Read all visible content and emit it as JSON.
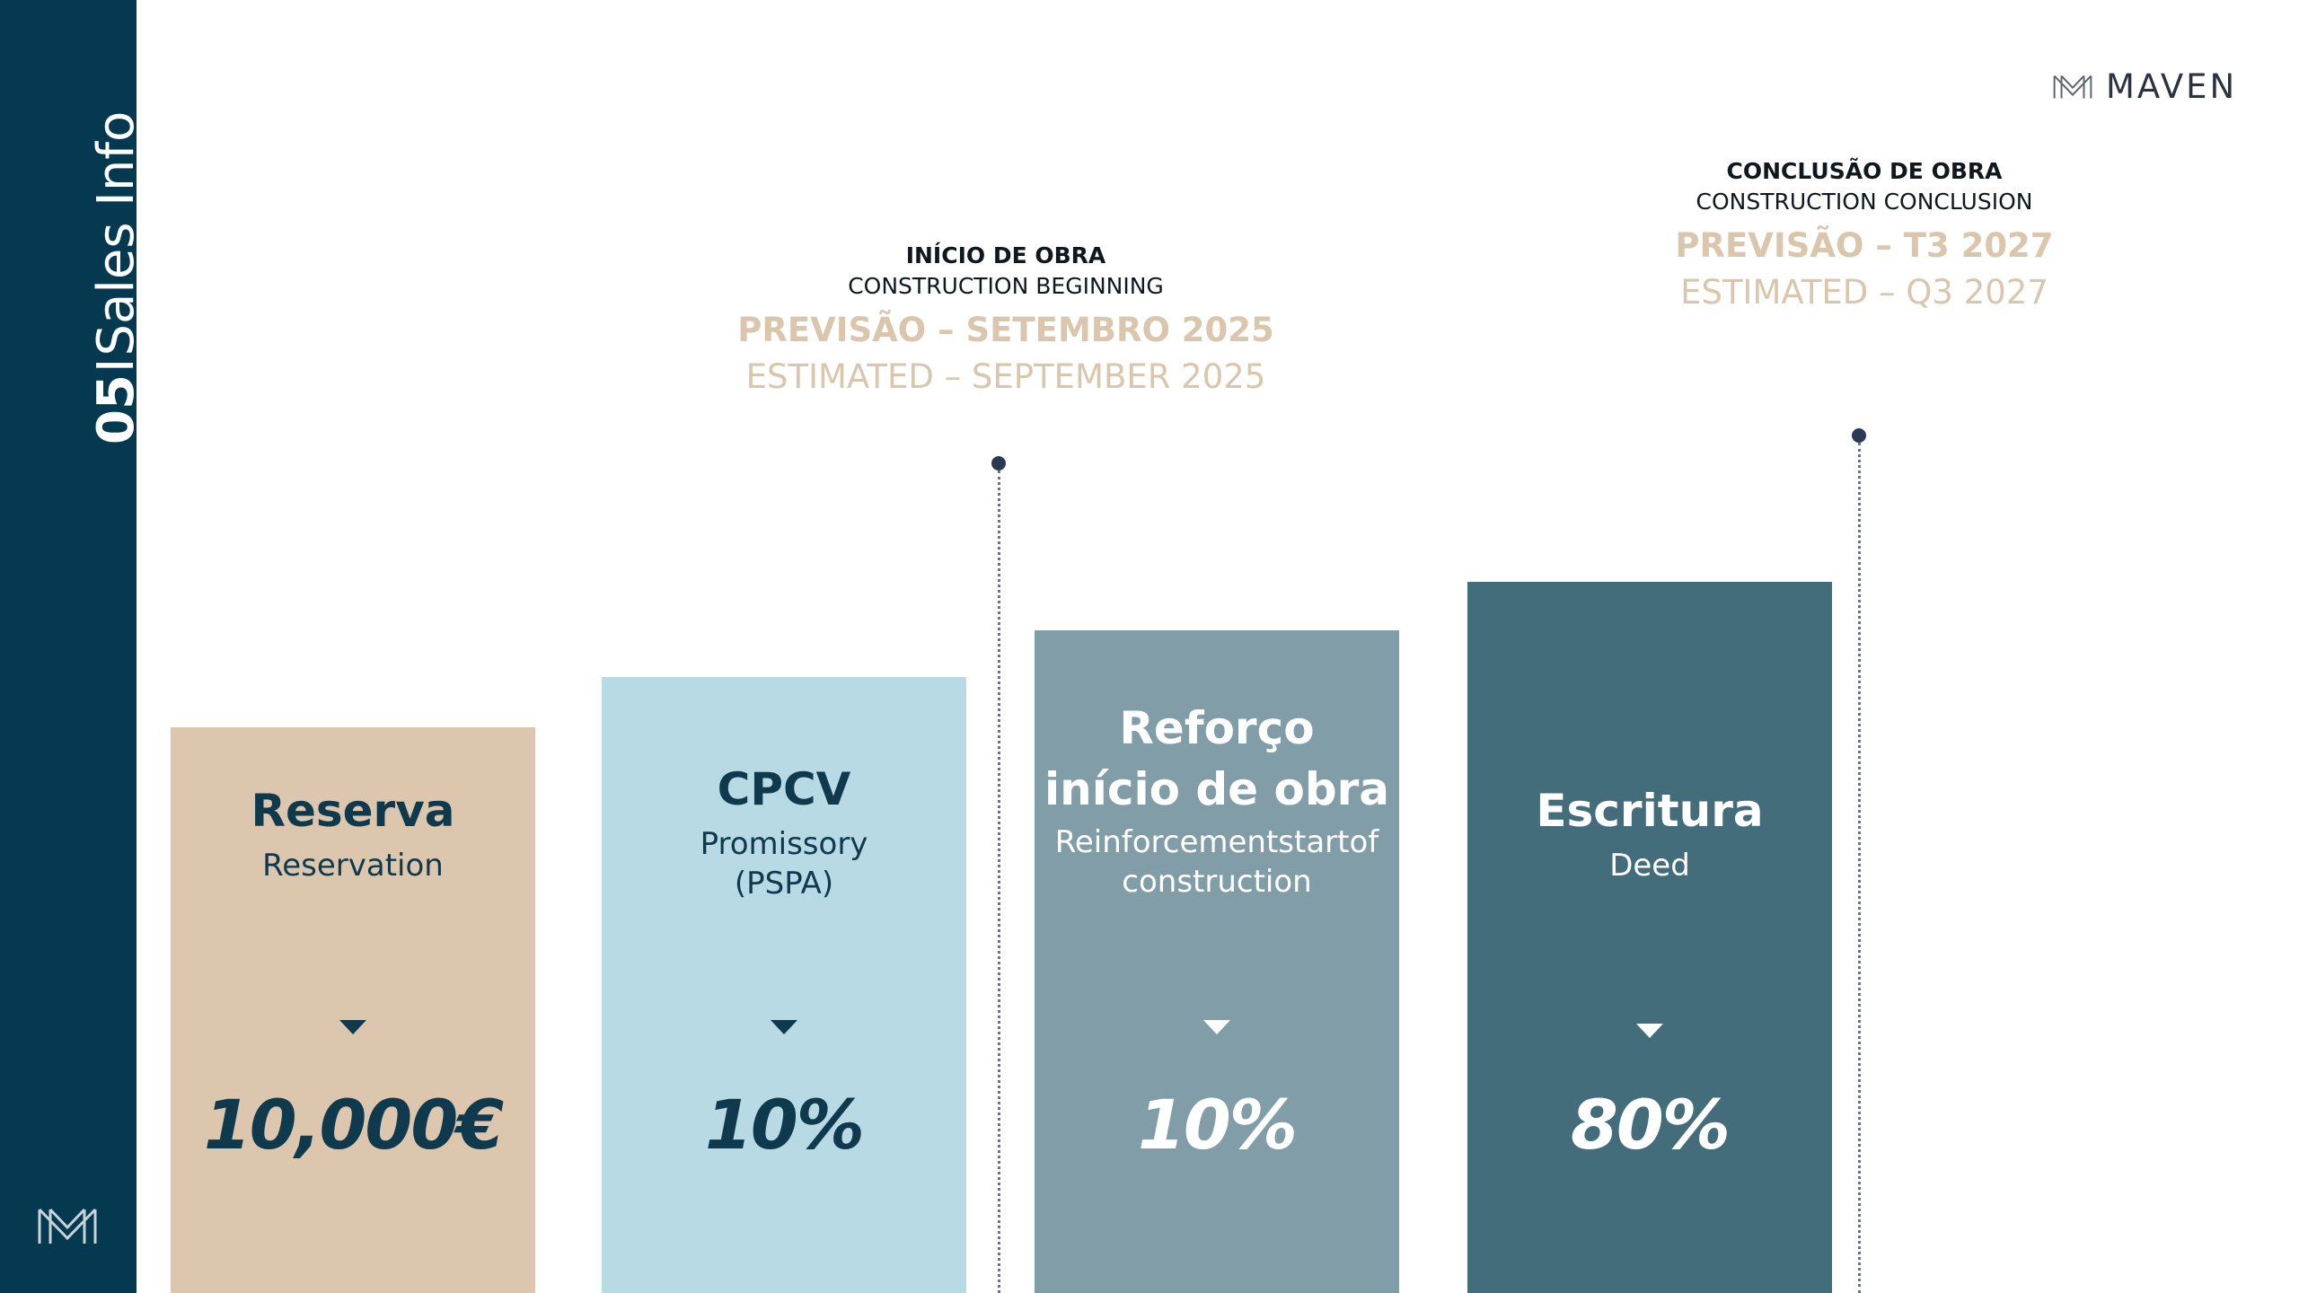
{
  "sidebar": {
    "section_number": "05",
    "separator": "I",
    "section_name": "Sales Info",
    "logo_icon": "maven-monogram-icon"
  },
  "brand": {
    "name": "MAVEN",
    "logo_icon": "maven-monogram-icon"
  },
  "milestones": [
    {
      "title": "INÍCIO DE OBRA",
      "subtitle": "CONSTRUCTION BEGINNING",
      "estimate_pt": "PREVISÃO – SETEMBRO 2025",
      "estimate_en": "ESTIMATED – SEPTEMBER 2025"
    },
    {
      "title": "CONCLUSÃO DE OBRA",
      "subtitle": "CONSTRUCTION CONCLUSION",
      "estimate_pt": "PREVISÃO – T3 2027",
      "estimate_en": "ESTIMATED – Q3 2027"
    }
  ],
  "stages": [
    {
      "title_line1": "Reserva",
      "title_line2": "",
      "subtitle_line1": "Reservation",
      "subtitle_line2": "",
      "value": "10,000€",
      "bg_color": "#dcc7ae",
      "text_color": "#0f3a4d"
    },
    {
      "title_line1": "CPCV",
      "title_line2": "",
      "subtitle_line1": "Promissory",
      "subtitle_line2": "(PSPA)",
      "value": "10%",
      "bg_color": "#b8dae4",
      "text_color": "#0f3a4d"
    },
    {
      "title_line1": "Reforço",
      "title_line2": "início de obra",
      "subtitle_line1": "Reinforcementstartof",
      "subtitle_line2": "construction",
      "value": "10%",
      "bg_color": "#819ea8",
      "text_color": "#ffffff"
    },
    {
      "title_line1": "Escritura",
      "title_line2": "",
      "subtitle_line1": "Deed",
      "subtitle_line2": "",
      "value": "80%",
      "bg_color": "#436d7b",
      "text_color": "#ffffff"
    }
  ],
  "colors": {
    "sidebar": "#05394f",
    "estimate_text": "#d9c6ad",
    "timeline_dot": "#2a3a55"
  }
}
